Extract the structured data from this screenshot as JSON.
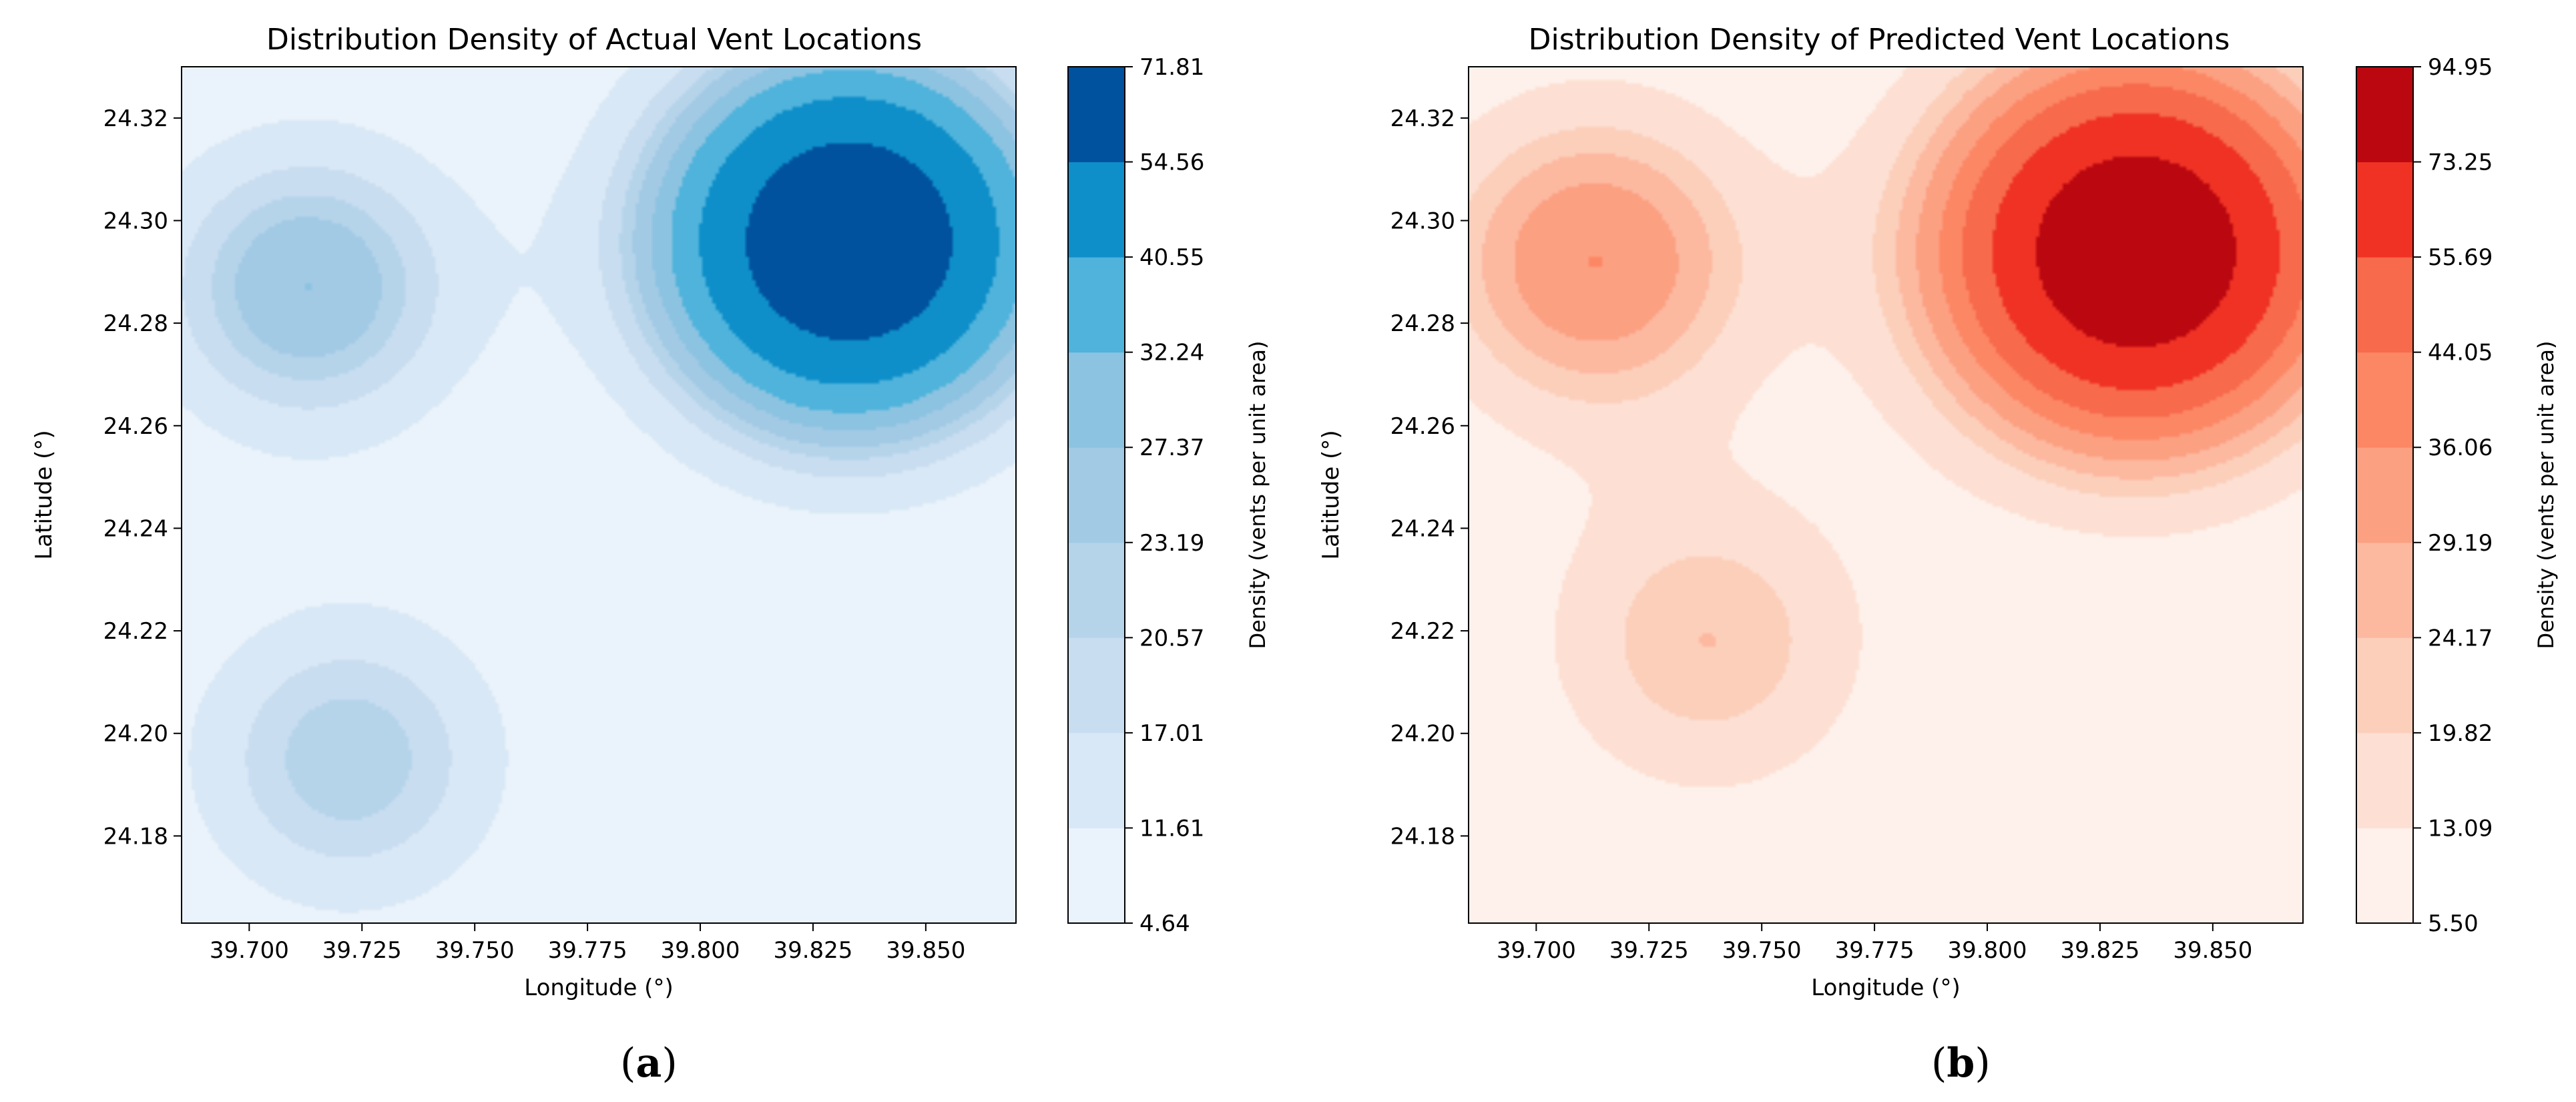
{
  "panels": [
    {
      "label_open": "(",
      "label_letter": "a",
      "label_close": ")",
      "chart_data": {
        "type": "contourf",
        "title": "Distribution Density of Actual Vent Locations",
        "xlabel": "Longitude (°)",
        "ylabel": "Latitude (°)",
        "xlim": [
          39.685,
          39.87
        ],
        "ylim": [
          24.163,
          24.33
        ],
        "xticks": [
          "39.700",
          "39.725",
          "39.750",
          "39.775",
          "39.800",
          "39.825",
          "39.850"
        ],
        "xtick_values": [
          39.7,
          39.725,
          39.75,
          39.775,
          39.8,
          39.825,
          39.85
        ],
        "yticks": [
          "24.32",
          "24.30",
          "24.28",
          "24.26",
          "24.24",
          "24.22",
          "24.20",
          "24.18"
        ],
        "ytick_values": [
          24.32,
          24.3,
          24.28,
          24.26,
          24.24,
          24.22,
          24.2,
          24.18
        ],
        "colorbar_label": "Density (vents per unit area)",
        "levels": [
          "4.64",
          "11.61",
          "17.01",
          "20.57",
          "23.19",
          "27.37",
          "32.24",
          "40.55",
          "54.56",
          "71.81"
        ],
        "level_values": [
          4.64,
          11.61,
          17.01,
          20.57,
          23.19,
          27.37,
          32.24,
          40.55,
          54.56,
          71.81
        ],
        "colormap": [
          "#eaf3fb",
          "#d9e8f6",
          "#c8ddf0",
          "#b5d4ea",
          "#a2cae5",
          "#8cc3e1",
          "#4fb3dc",
          "#0e8fc9",
          "#00529f"
        ],
        "peaks": [
          {
            "lon": 39.833,
            "lat": 24.296,
            "density": 71.81
          },
          {
            "lon": 39.713,
            "lat": 24.287,
            "density": 27.37
          },
          {
            "lon": 39.722,
            "lat": 24.195,
            "density": 23.19
          }
        ],
        "min_density": 4.64
      }
    },
    {
      "label_open": "(",
      "label_letter": "b",
      "label_close": ")",
      "chart_data": {
        "type": "contourf",
        "title": "Distribution Density of Predicted Vent Locations",
        "xlabel": "Longitude (°)",
        "ylabel": "Latitude (°)",
        "xlim": [
          39.685,
          39.87
        ],
        "ylim": [
          24.163,
          24.33
        ],
        "xticks": [
          "39.700",
          "39.725",
          "39.750",
          "39.775",
          "39.800",
          "39.825",
          "39.850"
        ],
        "xtick_values": [
          39.7,
          39.725,
          39.75,
          39.775,
          39.8,
          39.825,
          39.85
        ],
        "yticks": [
          "24.32",
          "24.30",
          "24.28",
          "24.26",
          "24.24",
          "24.22",
          "24.20",
          "24.18"
        ],
        "ytick_values": [
          24.32,
          24.3,
          24.28,
          24.26,
          24.24,
          24.22,
          24.2,
          24.18
        ],
        "colorbar_label": "Density (vents per unit area)",
        "levels": [
          "5.50",
          "13.09",
          "19.82",
          "24.17",
          "29.19",
          "36.06",
          "44.05",
          "55.69",
          "73.25",
          "94.95"
        ],
        "level_values": [
          5.5,
          13.09,
          19.82,
          24.17,
          29.19,
          36.06,
          44.05,
          55.69,
          73.25,
          94.95
        ],
        "colormap": [
          "#fef0ea",
          "#fde0d3",
          "#fccfbb",
          "#fcb9a0",
          "#fca082",
          "#fc8765",
          "#f76a4b",
          "#ef3224",
          "#bb0810"
        ],
        "peaks": [
          {
            "lon": 39.833,
            "lat": 24.294,
            "density": 94.95
          },
          {
            "lon": 39.713,
            "lat": 24.292,
            "density": 36.06
          },
          {
            "lon": 39.738,
            "lat": 24.218,
            "density": 24.17
          }
        ],
        "min_density": 5.5
      }
    }
  ]
}
